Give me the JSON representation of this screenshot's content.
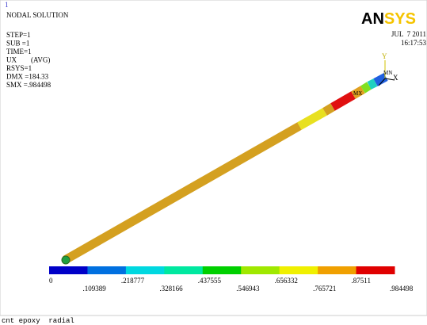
{
  "header": {
    "plot_number": "1",
    "title": "NODAL SOLUTION",
    "info": [
      "STEP=1",
      "SUB =1",
      "TIME=1",
      "UX        (AVG)",
      "RSYS=1",
      "DMX =184.33",
      "SMX =.984498"
    ],
    "date": "JUL  7 2011",
    "time": "16:17:53",
    "logo_dark": "AN",
    "logo_light": "SYS"
  },
  "triad": {
    "y": "Y",
    "x": "X",
    "mn": "MN",
    "mx": "MX"
  },
  "legend": {
    "labels": [
      "0",
      ".109389",
      ".218777",
      ".328166",
      ".437555",
      ".546943",
      ".656332",
      ".765721",
      ".87511",
      ".984498"
    ]
  },
  "caption": "cnt epoxy  radial"
}
